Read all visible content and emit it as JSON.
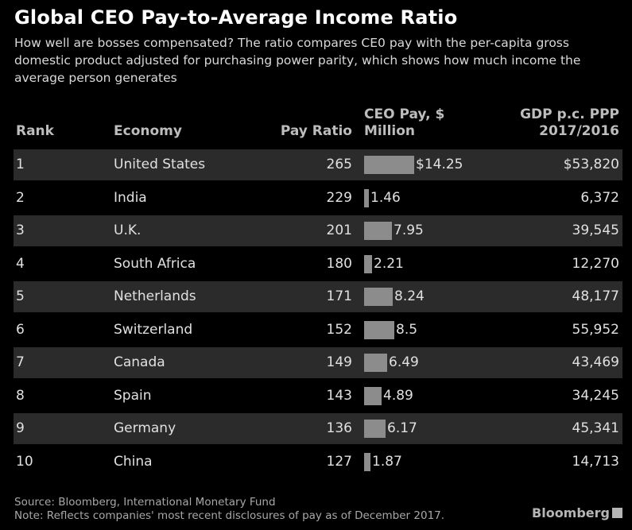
{
  "chart_data": {
    "type": "table",
    "title": "Global CEO Pay-to-Average Income Ratio",
    "subtitle": "How well are bosses compensated? The ratio compares CE0 pay with the per-capita gross domestic product adjusted for purchasing power parity, which shows how much income the average person generates",
    "columns": {
      "rank": "Rank",
      "economy": "Economy",
      "ratio": "Pay Ratio",
      "pay_line1": "CEO Pay, $",
      "pay_line2": "Million",
      "gdp_line1": "GDP p.c. PPP",
      "gdp_line2": "2017/2016"
    },
    "rows": [
      {
        "rank": "1",
        "economy": "United States",
        "ratio": "265",
        "pay": 14.25,
        "pay_label": "$14.25",
        "gdp": "$53,820"
      },
      {
        "rank": "2",
        "economy": "India",
        "ratio": "229",
        "pay": 1.46,
        "pay_label": "1.46",
        "gdp": "6,372"
      },
      {
        "rank": "3",
        "economy": "U.K.",
        "ratio": "201",
        "pay": 7.95,
        "pay_label": "7.95",
        "gdp": "39,545"
      },
      {
        "rank": "4",
        "economy": "South Africa",
        "ratio": "180",
        "pay": 2.21,
        "pay_label": "2.21",
        "gdp": "12,270"
      },
      {
        "rank": "5",
        "economy": "Netherlands",
        "ratio": "171",
        "pay": 8.24,
        "pay_label": "8.24",
        "gdp": "48,177"
      },
      {
        "rank": "6",
        "economy": "Switzerland",
        "ratio": "152",
        "pay": 8.5,
        "pay_label": "8.5",
        "gdp": "55,952"
      },
      {
        "rank": "7",
        "economy": "Canada",
        "ratio": "149",
        "pay": 6.49,
        "pay_label": "6.49",
        "gdp": "43,469"
      },
      {
        "rank": "8",
        "economy": "Spain",
        "ratio": "143",
        "pay": 4.89,
        "pay_label": "4.89",
        "gdp": "34,245"
      },
      {
        "rank": "9",
        "economy": "Germany",
        "ratio": "136",
        "pay": 6.17,
        "pay_label": "6.17",
        "gdp": "45,341"
      },
      {
        "rank": "10",
        "economy": "China",
        "ratio": "127",
        "pay": 1.87,
        "pay_label": "1.87",
        "gdp": "14,713"
      }
    ],
    "pay_max": 14.25
  },
  "footer": {
    "source": "Source: Bloomberg, International Monetary Fund",
    "note": "Note: Reflects companies' most recent disclosures of pay as of December 2017.",
    "brand": "Bloomberg"
  },
  "colors": {
    "background": "#000000",
    "row_shade": "#2b2b2b",
    "bar": "#8c8c8c"
  }
}
